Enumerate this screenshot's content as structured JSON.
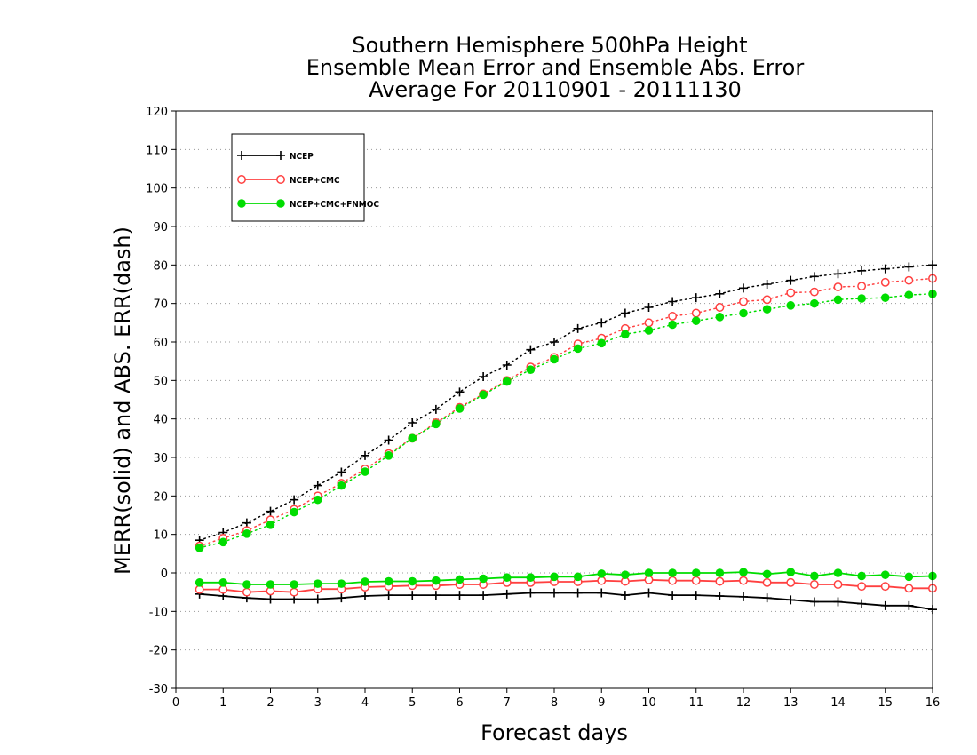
{
  "chart_data": {
    "type": "line",
    "title_lines": [
      "Southern Hemisphere 500hPa Height",
      "Ensemble Mean Error and Ensemble Abs. Error",
      "Average For 20110901 - 20111130"
    ],
    "xlabel": "Forecast days",
    "ylabel": "MERR(solid) and ABS. ERR(dash)",
    "xlim": [
      0,
      16
    ],
    "ylim": [
      -30,
      120
    ],
    "x_ticks": [
      0,
      1,
      2,
      3,
      4,
      5,
      6,
      7,
      8,
      9,
      10,
      11,
      12,
      13,
      14,
      15,
      16
    ],
    "y_ticks": [
      -30,
      -20,
      -10,
      0,
      10,
      20,
      30,
      40,
      50,
      60,
      70,
      80,
      90,
      100,
      110,
      120
    ],
    "y_tick_labels": [
      "-30",
      "-20",
      "-10",
      "0",
      "10",
      "20",
      "30",
      "40",
      "50",
      "60",
      "70",
      "80",
      "90",
      "100",
      "110",
      "120"
    ],
    "grid": "horizontal dotted",
    "legend_position": "top-left",
    "x": [
      0.5,
      1,
      1.5,
      2,
      2.5,
      3,
      3.5,
      4,
      4.5,
      5,
      5.5,
      6,
      6.5,
      7,
      7.5,
      8,
      8.5,
      9,
      9.5,
      10,
      10.5,
      11,
      11.5,
      12,
      12.5,
      13,
      13.5,
      14,
      14.5,
      15,
      15.5,
      16
    ],
    "series": [
      {
        "name": "NCEP",
        "color": "#000000",
        "marker": "plus",
        "abs_err": [
          8.5,
          10.5,
          13,
          16,
          19,
          22.7,
          26.2,
          30.5,
          34.5,
          39,
          42.5,
          47,
          51,
          54,
          58,
          60,
          63.5,
          65,
          67.5,
          69,
          70.5,
          71.5,
          72.5,
          74,
          75,
          76,
          77,
          77.7,
          78.5,
          79,
          79.5,
          80
        ],
        "mean_err": [
          -5.5,
          -6,
          -6.5,
          -6.8,
          -6.8,
          -6.8,
          -6.5,
          -6,
          -5.8,
          -5.8,
          -5.8,
          -5.8,
          -5.8,
          -5.5,
          -5.2,
          -5.2,
          -5.2,
          -5.2,
          -5.8,
          -5.2,
          -5.8,
          -5.8,
          -6,
          -6.2,
          -6.5,
          -7,
          -7.5,
          -7.5,
          -8,
          -8.5,
          -8.5,
          -9.5
        ]
      },
      {
        "name": "NCEP+CMC",
        "color": "#ff4040",
        "marker": "open-circle",
        "abs_err": [
          7,
          9,
          11,
          13.8,
          16.5,
          20,
          23.3,
          27,
          31,
          35,
          39,
          43,
          46.5,
          50,
          53.5,
          56,
          59.5,
          61,
          63.5,
          65,
          66.7,
          67.5,
          69,
          70.5,
          71,
          72.8,
          73,
          74.3,
          74.5,
          75.5,
          76,
          76.5
        ],
        "mean_err": [
          -4.3,
          -4.3,
          -5,
          -4.7,
          -5,
          -4.2,
          -4.2,
          -3.7,
          -3.5,
          -3.3,
          -3.3,
          -3,
          -3,
          -2.5,
          -2.5,
          -2.3,
          -2.3,
          -2,
          -2.2,
          -1.8,
          -2,
          -2,
          -2.2,
          -2,
          -2.5,
          -2.5,
          -3,
          -3,
          -3.5,
          -3.5,
          -4,
          -4
        ]
      },
      {
        "name": "NCEP+CMC+FNMOC",
        "color": "#00dd00",
        "marker": "filled-circle",
        "abs_err": [
          6.5,
          8,
          10.2,
          12.5,
          15.8,
          19,
          22.7,
          26.3,
          30.5,
          35,
          38.7,
          42.7,
          46.3,
          49.7,
          52.8,
          55.5,
          58.3,
          59.7,
          62,
          63,
          64.5,
          65.5,
          66.5,
          67.5,
          68.5,
          69.5,
          70,
          71,
          71.3,
          71.5,
          72.2,
          72.5
        ],
        "mean_err": [
          -2.5,
          -2.5,
          -3,
          -3,
          -3,
          -2.8,
          -2.8,
          -2.3,
          -2.2,
          -2.2,
          -2,
          -1.7,
          -1.5,
          -1.2,
          -1.2,
          -1,
          -1,
          -0.2,
          -0.5,
          0,
          0,
          0,
          0,
          0.2,
          -0.3,
          0.2,
          -0.8,
          0,
          -0.8,
          -0.5,
          -1,
          -0.8
        ]
      }
    ]
  }
}
